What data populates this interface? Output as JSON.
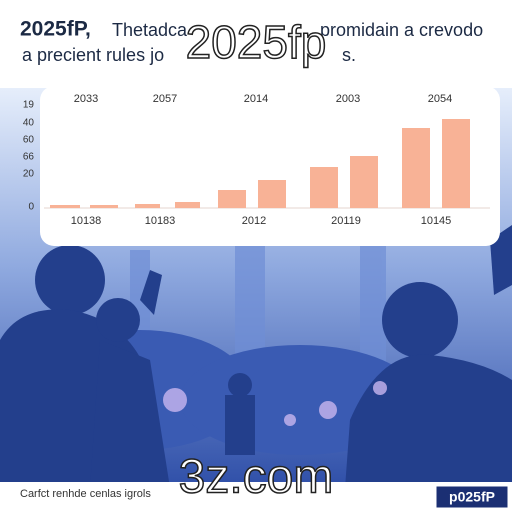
{
  "header": {
    "lead": "2025fP,",
    "line1": "Thetadca",
    "line1_tail": "promidain a crevodo",
    "line2": "a precient rules jo",
    "line2_tail": "s."
  },
  "overlay_title": "2025fp",
  "chart": {
    "top_labels": [
      "2033",
      "2057",
      "2014",
      "2003",
      "2054"
    ],
    "bottom_labels": [
      "10138",
      "10183",
      "2012",
      "20119",
      "10145"
    ],
    "side_labels": [
      "19",
      "40",
      "60",
      "66",
      "20",
      "0"
    ]
  },
  "watermark": "3z.com",
  "footer": {
    "caption": "Carfct renhde cenlas igrols",
    "badge": "p025fP"
  }
}
